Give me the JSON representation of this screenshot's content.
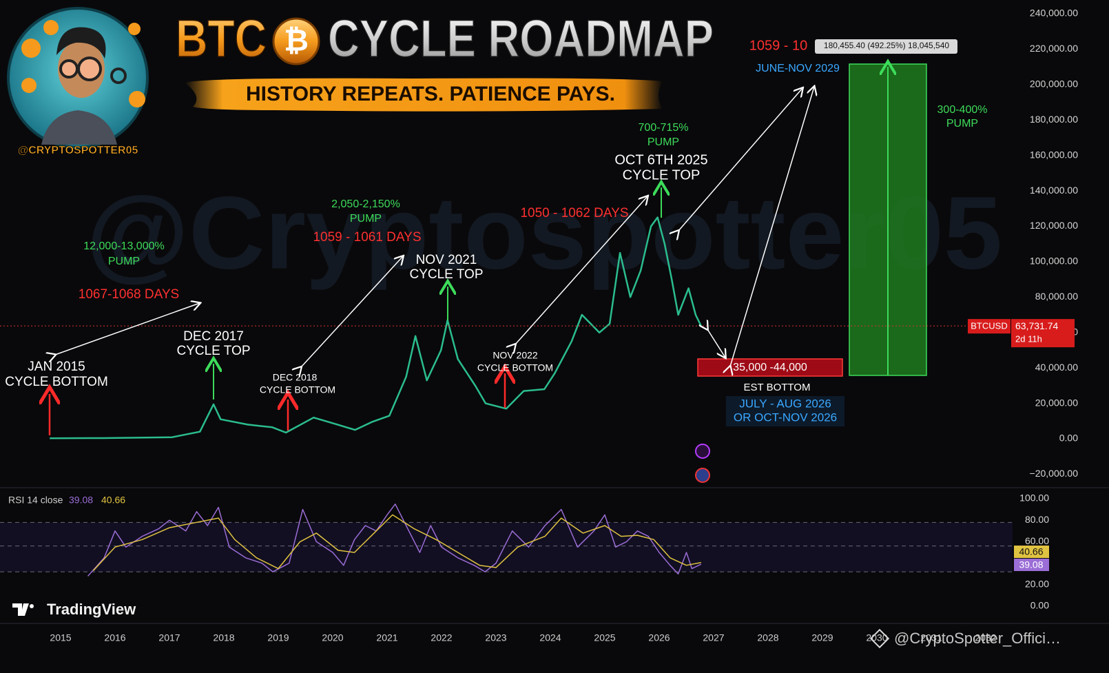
{
  "header": {
    "title_left": "BTC",
    "title_icon": "₿",
    "title_right": "CYCLE ROADMAP",
    "subtitle": "HISTORY REPEATS. PATIENCE PAYS.",
    "handle": "@CRYPTOSPOTTER05",
    "watermark": "@Cryptospotter05"
  },
  "footer": {
    "brand": "TradingView",
    "credit": "@CryptoSpotter_Offici…"
  },
  "chart_data": [
    {
      "type": "line",
      "xlim": [
        2013.886,
        2032.494
      ],
      "ylim": [
        -26450,
        247780
      ],
      "xticks": [
        2015,
        2016,
        2017,
        2018,
        2019,
        2020,
        2021,
        2022,
        2023,
        2024,
        2025,
        2026,
        2027,
        2028,
        2029,
        2030,
        2031,
        2032
      ],
      "yticks": [
        {
          "value": -20000,
          "label": "−20,000.00"
        },
        {
          "value": 0,
          "label": "0.00"
        },
        {
          "value": 20000,
          "label": "20,000.00"
        },
        {
          "value": 40000,
          "label": "40,000.00"
        },
        {
          "value": 60000,
          "label": "60,000.00"
        },
        {
          "value": 80000,
          "label": "80,000.00"
        },
        {
          "value": 100000,
          "label": "100,000.00"
        },
        {
          "value": 120000,
          "label": "120,000.00"
        },
        {
          "value": 140000,
          "label": "140,000.00"
        },
        {
          "value": 160000,
          "label": "160,000.00"
        },
        {
          "value": 180000,
          "label": "180,000.00"
        },
        {
          "value": 200000,
          "label": "200,000.00"
        },
        {
          "value": 220000,
          "label": "220,000.00"
        },
        {
          "value": 240000,
          "label": "240,000.00"
        }
      ],
      "grid": false,
      "series": [
        {
          "name": "BTCUSD",
          "color": "#2bbd8e",
          "x": [
            2014.8,
            2015.78,
            2017.05,
            2017.56,
            2017.81,
            2017.94,
            2018.44,
            2018.89,
            2019.14,
            2019.65,
            2020.09,
            2020.41,
            2020.72,
            2021.04,
            2021.35,
            2021.52,
            2021.73,
            2021.99,
            2022.11,
            2022.3,
            2022.62,
            2022.81,
            2023.19,
            2023.51,
            2023.89,
            2024.08,
            2024.39,
            2024.58,
            2024.9,
            2025.09,
            2025.28,
            2025.47,
            2025.66,
            2025.85,
            2025.97,
            2026.1,
            2026.23,
            2026.35,
            2026.54,
            2026.67,
            2026.77
          ],
          "values": [
            300,
            400,
            900,
            4000,
            19500,
            11000,
            8000,
            6500,
            3500,
            12000,
            8000,
            5000,
            9500,
            13000,
            35000,
            58000,
            33000,
            50000,
            67000,
            45000,
            30000,
            20000,
            17000,
            27000,
            28000,
            37000,
            55000,
            70000,
            60000,
            65000,
            105000,
            80000,
            95000,
            120000,
            125000,
            110000,
            90000,
            70000,
            85000,
            70000,
            63731.74
          ]
        }
      ],
      "last_value_label": "63,731.74",
      "countdown": "2d 11h",
      "annotations": [
        {
          "text": "JAN 2015",
          "color": "#ffffff"
        },
        {
          "text": "CYCLE BOTTOM",
          "color": "#ffffff"
        },
        {
          "text": "DEC 2017",
          "color": "#ffffff"
        },
        {
          "text": "CYCLE TOP",
          "color": "#ffffff"
        },
        {
          "text": "DEC 2018",
          "color": "#ffffff"
        },
        {
          "text": "CYCLE BOTTOM",
          "color": "#ffffff"
        },
        {
          "text": "NOV 2021",
          "color": "#ffffff"
        },
        {
          "text": "CYCLE TOP",
          "color": "#ffffff"
        },
        {
          "text": "NOV 2022",
          "color": "#ffffff"
        },
        {
          "text": "CYCLE BOTTOM",
          "color": "#ffffff"
        },
        {
          "text": "OCT 6TH 2025",
          "color": "#ffffff"
        },
        {
          "text": "CYCLE TOP",
          "color": "#ffffff"
        },
        {
          "text": "12,000-13,000%",
          "color": "#3ddc5a"
        },
        {
          "text": "PUMP",
          "color": "#3ddc5a"
        },
        {
          "text": "1067-1068 DAYS",
          "color": "#ff3030"
        },
        {
          "text": "2,050-2,150%",
          "color": "#3ddc5a"
        },
        {
          "text": "PUMP",
          "color": "#3ddc5a"
        },
        {
          "text": "1059 - 1061 DAYS",
          "color": "#ff3030"
        },
        {
          "text": "700-715%",
          "color": "#3ddc5a"
        },
        {
          "text": "PUMP",
          "color": "#3ddc5a"
        },
        {
          "text": "1050 - 1062 DAYS",
          "color": "#ff3030"
        },
        {
          "text": "1059 - 10",
          "color": "#ff3030"
        },
        {
          "text": "180,455.40 (492.25%) 18,045,540",
          "color": "#111111"
        },
        {
          "text": "JUNE-NOV 2029",
          "color": "#3aa8ff"
        },
        {
          "text": "300-400%",
          "color": "#3ddc5a"
        },
        {
          "text": "PUMP",
          "color": "#3ddc5a"
        },
        {
          "text": "35,000 -44,000",
          "color": "#ffffff"
        },
        {
          "text": "EST BOTTOM",
          "color": "#ffffff"
        },
        {
          "text": "JULY - AUG 2026",
          "color": "#3aa8ff"
        },
        {
          "text": "OR OCT-NOV 2026",
          "color": "#3aa8ff"
        }
      ]
    },
    {
      "type": "line",
      "title": "RSI 14 close",
      "xlim": [
        2013.886,
        2032.494
      ],
      "ylim": [
        -16,
        107.7
      ],
      "yticks": [
        {
          "value": 0,
          "label": "0.00"
        },
        {
          "value": 20,
          "label": "20.00"
        },
        {
          "value": 40,
          "label": "40.00"
        },
        {
          "value": 60,
          "label": "60.00"
        },
        {
          "value": 80,
          "label": "80.00"
        },
        {
          "value": 100,
          "label": "100.00"
        }
      ],
      "bands": [
        78,
        56,
        32
      ],
      "series": [
        {
          "color": "#9b6dd6",
          "x": [
            2015.5,
            2015.8,
            2016.0,
            2016.2,
            2016.5,
            2016.8,
            2017.0,
            2017.3,
            2017.5,
            2017.7,
            2017.9,
            2018.1,
            2018.4,
            2018.7,
            2018.9,
            2019.2,
            2019.45,
            2019.7,
            2020.0,
            2020.2,
            2020.4,
            2020.6,
            2020.8,
            2021.0,
            2021.15,
            2021.4,
            2021.6,
            2021.8,
            2022.0,
            2022.3,
            2022.6,
            2022.8,
            2023.0,
            2023.3,
            2023.6,
            2023.9,
            2024.2,
            2024.5,
            2024.8,
            2025.0,
            2025.2,
            2025.4,
            2025.6,
            2025.8,
            2026.0,
            2026.2,
            2026.35,
            2026.5,
            2026.6,
            2026.77
          ],
          "values": [
            28,
            45,
            70,
            55,
            65,
            72,
            80,
            70,
            88,
            75,
            92,
            55,
            45,
            40,
            32,
            40,
            90,
            60,
            50,
            38,
            62,
            75,
            70,
            85,
            95,
            70,
            50,
            75,
            55,
            45,
            38,
            32,
            40,
            70,
            55,
            75,
            90,
            55,
            70,
            85,
            55,
            60,
            70,
            65,
            50,
            38,
            30,
            50,
            35,
            39.08
          ]
        },
        {
          "color": "#e0c341",
          "x": [
            2015.6,
            2016.0,
            2016.5,
            2017.0,
            2017.5,
            2017.9,
            2018.2,
            2018.6,
            2019.0,
            2019.4,
            2019.7,
            2020.1,
            2020.4,
            2020.8,
            2021.1,
            2021.5,
            2021.9,
            2022.3,
            2022.7,
            2023.0,
            2023.4,
            2023.9,
            2024.2,
            2024.6,
            2025.0,
            2025.3,
            2025.6,
            2025.9,
            2026.2,
            2026.5,
            2026.77
          ],
          "values": [
            33,
            55,
            62,
            73,
            78,
            82,
            62,
            45,
            35,
            60,
            68,
            52,
            50,
            70,
            85,
            72,
            62,
            50,
            38,
            36,
            55,
            65,
            82,
            68,
            75,
            65,
            66,
            62,
            45,
            38,
            40.66
          ]
        }
      ]
    }
  ]
}
